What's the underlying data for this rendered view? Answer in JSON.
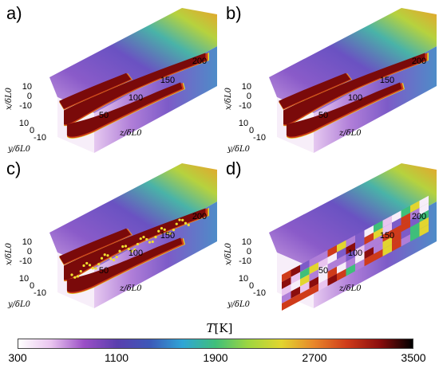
{
  "panels": [
    {
      "label": "a)"
    },
    {
      "label": "b)"
    },
    {
      "label": "c)"
    },
    {
      "label": "d)"
    }
  ],
  "axes": {
    "x_label": "x/δL0",
    "y_label": "y/δL0",
    "z_label": "z/δL0",
    "x_ticks": [
      "10",
      "0",
      "-10"
    ],
    "y_ticks": [
      "10",
      "0",
      "-10"
    ],
    "z_ticks": [
      "50",
      "100",
      "150",
      "200"
    ]
  },
  "colorbar": {
    "title_var": "T",
    "title_unit": "[K]",
    "ticks": [
      "300",
      "1100",
      "1900",
      "2700",
      "3500"
    ],
    "colors": [
      "#ffffff",
      "#e9c4ef",
      "#9b4fc6",
      "#5a3fae",
      "#3d58b8",
      "#2fa5d6",
      "#3fbf7a",
      "#9ed640",
      "#e2d52f",
      "#e8862a",
      "#cf3b1a",
      "#8b0d0d",
      "#000000"
    ]
  }
}
